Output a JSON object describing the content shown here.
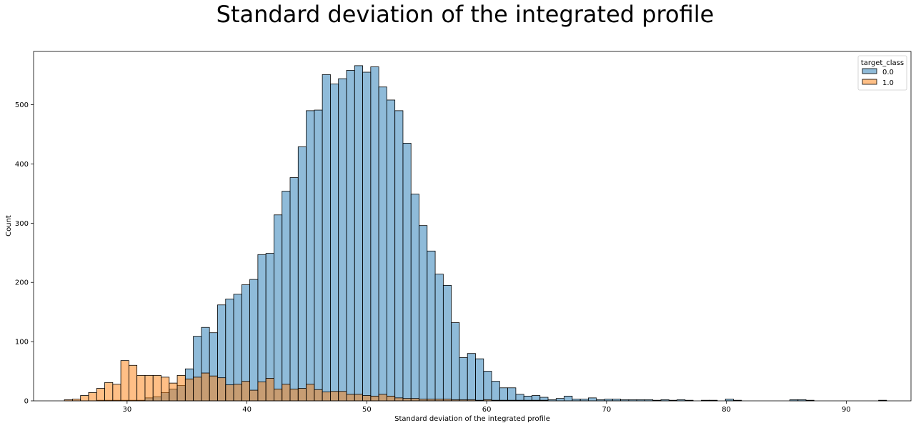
{
  "chart_data": {
    "type": "bar",
    "subtype": "histogram",
    "title": "Standard deviation of the integrated profile",
    "xlabel": "Standard deviation of the integrated profile",
    "ylabel": "Count",
    "xlim": [
      22.2,
      95.4
    ],
    "ylim": [
      0,
      590
    ],
    "xticks": [
      30,
      40,
      50,
      60,
      70,
      80,
      90
    ],
    "yticks": [
      0,
      100,
      200,
      300,
      400,
      500
    ],
    "grid": false,
    "legend_title": "target_class",
    "legend_position": "top-right",
    "bin_start": 24.77,
    "bin_width": 0.6725,
    "series": [
      {
        "name": "0.0",
        "color": "#1f77b4",
        "values": [
          0,
          0,
          0,
          0,
          1,
          1,
          1,
          1,
          1,
          1,
          5,
          7,
          14,
          20,
          26,
          54,
          109,
          124,
          115,
          162,
          172,
          180,
          196,
          205,
          247,
          249,
          314,
          354,
          377,
          429,
          490,
          491,
          551,
          535,
          544,
          558,
          566,
          555,
          564,
          530,
          508,
          490,
          435,
          349,
          296,
          253,
          214,
          195,
          132,
          73,
          80,
          71,
          50,
          33,
          22,
          22,
          11,
          8,
          9,
          6,
          2,
          4,
          8,
          3,
          3,
          5,
          2,
          3,
          3,
          2,
          2,
          2,
          2,
          1,
          2,
          1,
          2,
          1,
          0,
          1,
          1,
          0,
          3,
          1,
          0,
          0,
          0,
          0,
          0,
          0,
          2,
          2,
          1,
          0,
          0,
          0,
          0,
          0,
          0,
          0,
          0,
          1
        ]
      },
      {
        "name": "1.0",
        "color": "#ff7f0e",
        "values": [
          2,
          3,
          9,
          14,
          21,
          31,
          28,
          68,
          60,
          43,
          43,
          43,
          40,
          30,
          43,
          37,
          40,
          47,
          42,
          39,
          27,
          28,
          33,
          18,
          32,
          38,
          20,
          28,
          20,
          21,
          28,
          19,
          15,
          16,
          16,
          11,
          11,
          9,
          8,
          11,
          8,
          5,
          4,
          4,
          3,
          3,
          3,
          3,
          2,
          2,
          2,
          1,
          2,
          1,
          1,
          1,
          1,
          1,
          1,
          1,
          0,
          0,
          0,
          0,
          0,
          0,
          0,
          0,
          0,
          0,
          0,
          0,
          0,
          0,
          0,
          0,
          0,
          0,
          0,
          0,
          0,
          0,
          0,
          0,
          0,
          0,
          0,
          0,
          0,
          0,
          0,
          0,
          0,
          0,
          0,
          0,
          0,
          0,
          0,
          0,
          0,
          0
        ]
      }
    ]
  }
}
